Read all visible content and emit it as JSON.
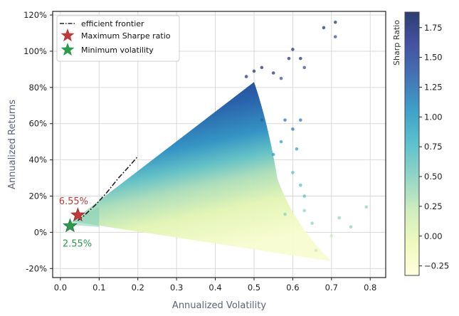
{
  "chart_data": {
    "type": "scatter",
    "title": "",
    "xlabel": "Annualized Volatility",
    "ylabel": "Annualized Returns",
    "xlim": [
      -0.02,
      0.84
    ],
    "ylim": [
      -0.25,
      1.22
    ],
    "x_ticks": [
      0.0,
      0.1,
      0.2,
      0.3,
      0.4,
      0.5,
      0.6,
      0.7,
      0.8
    ],
    "x_tick_labels": [
      "0.0",
      "0.1",
      "0.2",
      "0.3",
      "0.4",
      "0.5",
      "0.6",
      "0.7",
      "0.8"
    ],
    "y_ticks": [
      -0.2,
      0.0,
      0.2,
      0.4,
      0.6,
      0.8,
      1.0,
      1.2
    ],
    "y_tick_labels": [
      "-20%",
      "0%",
      "20%",
      "40%",
      "60%",
      "80%",
      "100%",
      "120%"
    ],
    "grid": true,
    "legend_position": "top-left",
    "legend": [
      {
        "label": "efficient frontier",
        "marker": "dash-dot-line",
        "color": "#222222"
      },
      {
        "label": "Maximum Sharpe ratio",
        "marker": "star",
        "color": "#c0393b"
      },
      {
        "label": "Minimum volatility",
        "marker": "star",
        "color": "#2e9a4e"
      }
    ],
    "colorbar": {
      "label": "Sharp Ratio",
      "range": [
        -0.33,
        1.88
      ],
      "ticks": [
        -0.25,
        0.0,
        0.25,
        0.5,
        0.75,
        1.0,
        1.25,
        1.5,
        1.75
      ],
      "tick_labels": [
        "−0.25",
        "0.00",
        "0.25",
        "0.50",
        "0.75",
        "1.00",
        "1.25",
        "1.50",
        "1.75"
      ],
      "colormap": "YlGnBu"
    },
    "efficient_frontier": {
      "x": [
        0.045,
        0.06,
        0.09,
        0.12,
        0.15,
        0.18,
        0.2
      ],
      "y": [
        0.065,
        0.09,
        0.15,
        0.22,
        0.3,
        0.37,
        0.42
      ]
    },
    "max_sharpe": {
      "x": 0.045,
      "y": 0.095,
      "label": "6.55%",
      "color": "#c0393b"
    },
    "min_volatility": {
      "x": 0.025,
      "y": 0.035,
      "label": "2.55%",
      "color": "#2e9a4e"
    },
    "cloud_outline_high": {
      "x": [
        0.03,
        0.5
      ],
      "y": [
        0.06,
        0.83
      ]
    },
    "cloud_outline_low": {
      "x": [
        0.03,
        0.7
      ],
      "y": [
        0.04,
        -0.16
      ]
    },
    "outlier_points": [
      {
        "x": 0.48,
        "y": 0.86
      },
      {
        "x": 0.5,
        "y": 0.89
      },
      {
        "x": 0.52,
        "y": 0.91
      },
      {
        "x": 0.55,
        "y": 0.88
      },
      {
        "x": 0.57,
        "y": 0.85
      },
      {
        "x": 0.59,
        "y": 0.96
      },
      {
        "x": 0.6,
        "y": 1.01
      },
      {
        "x": 0.62,
        "y": 0.96
      },
      {
        "x": 0.63,
        "y": 0.91
      },
      {
        "x": 0.68,
        "y": 1.13
      },
      {
        "x": 0.71,
        "y": 1.16
      },
      {
        "x": 0.71,
        "y": 1.08
      },
      {
        "x": 0.58,
        "y": 0.62
      },
      {
        "x": 0.6,
        "y": 0.57
      },
      {
        "x": 0.61,
        "y": 0.46
      },
      {
        "x": 0.62,
        "y": 0.62
      },
      {
        "x": 0.57,
        "y": 0.5
      },
      {
        "x": 0.6,
        "y": 0.33
      },
      {
        "x": 0.62,
        "y": 0.26
      },
      {
        "x": 0.63,
        "y": 0.2
      },
      {
        "x": 0.63,
        "y": 0.12
      },
      {
        "x": 0.58,
        "y": 0.1
      },
      {
        "x": 0.65,
        "y": 0.05
      },
      {
        "x": 0.7,
        "y": -0.02
      },
      {
        "x": 0.72,
        "y": 0.08
      },
      {
        "x": 0.75,
        "y": 0.03
      },
      {
        "x": 0.79,
        "y": 0.14
      },
      {
        "x": 0.66,
        "y": -0.1
      },
      {
        "x": 0.55,
        "y": 0.43
      },
      {
        "x": 0.52,
        "y": 0.62
      }
    ]
  }
}
